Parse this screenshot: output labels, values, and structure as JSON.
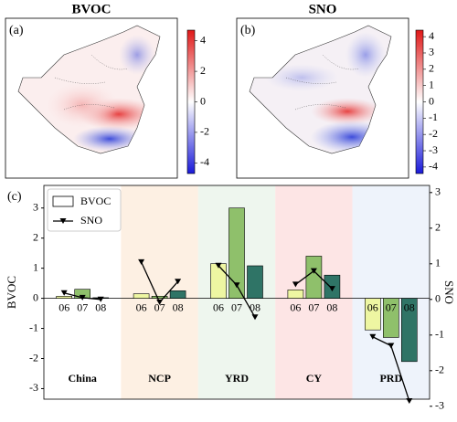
{
  "chart_data": [
    {
      "type": "map",
      "title": "BVOC",
      "panel": "(a)",
      "clim": [
        -4.7,
        4.7
      ],
      "cticks": [
        4,
        2,
        0,
        -2,
        -4
      ],
      "colormap": [
        "#1a1ad9",
        "#ffffff",
        "#e01818"
      ]
    },
    {
      "type": "map",
      "title": "SNO",
      "panel": "(b)",
      "clim": [
        -4.4,
        4.4
      ],
      "cticks": [
        4,
        3,
        2,
        1,
        0,
        -1,
        -2,
        -3,
        -4
      ],
      "colormap": [
        "#1a1ad9",
        "#ffffff",
        "#e01818"
      ]
    },
    {
      "type": "bar",
      "panel": "(c)",
      "ylabel": "BVOC",
      "y2label": "SNO",
      "categories": [
        "China",
        "NCP",
        "YRD",
        "CY",
        "PRD"
      ],
      "region_colors": [
        "#ffffff",
        "#fdf0e3",
        "#eef6ee",
        "#fde5e5",
        "#eef3fb"
      ],
      "subcategories": [
        "06",
        "07",
        "08"
      ],
      "bar_colors": [
        "#eef6a2",
        "#8fc06b",
        "#2f7466"
      ],
      "series": [
        {
          "name": "BVOC",
          "values": [
            [
              0.07,
              0.3,
              0.02
            ],
            [
              0.15,
              0.07,
              0.25
            ],
            [
              1.15,
              3.0,
              1.08
            ],
            [
              0.28,
              1.4,
              0.77
            ],
            [
              -1.05,
              -1.3,
              -2.1
            ]
          ]
        },
        {
          "name": "SNO",
          "axis": "y2",
          "color": "#000000",
          "values": [
            [
              0.18,
              0.05,
              0.0
            ],
            [
              1.05,
              -0.08,
              0.5
            ],
            [
              0.95,
              0.4,
              -0.5
            ],
            [
              0.42,
              0.8,
              0.3
            ],
            [
              -1.05,
              -1.3,
              -2.85
            ]
          ]
        }
      ],
      "ylim": [
        -3.35,
        3.75
      ],
      "yticks": [
        -3,
        -2,
        -1,
        0,
        1,
        2,
        3
      ],
      "y2lim": [
        -2.8,
        3.2
      ],
      "y2ticks": [
        -3,
        -2,
        -1,
        0,
        1,
        2,
        3
      ]
    }
  ]
}
